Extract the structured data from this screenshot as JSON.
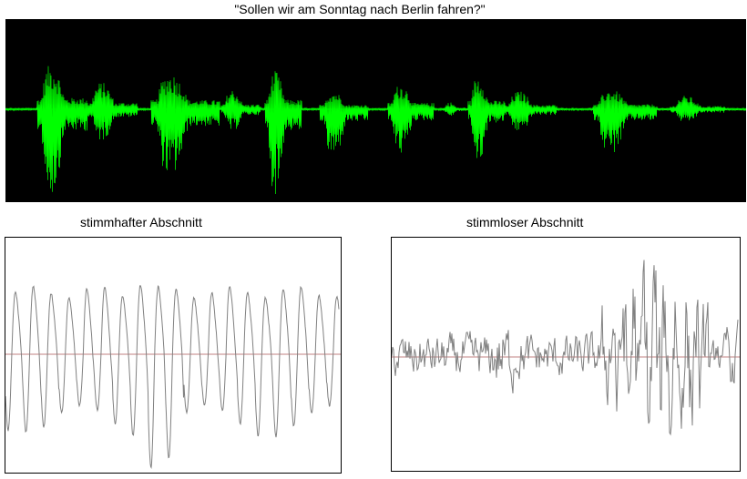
{
  "sentence": "\"Sollen wir am Sonntag nach Berlin fahren?\"",
  "voiced_label": "stimmhafter Abschnitt",
  "unvoiced_label": "stimmloser Abschnitt",
  "colors": {
    "overview_background": "#000000",
    "overview_waveform": "#00ff00",
    "detail_waveform": "#808080",
    "zero_line": "#c08080"
  }
}
